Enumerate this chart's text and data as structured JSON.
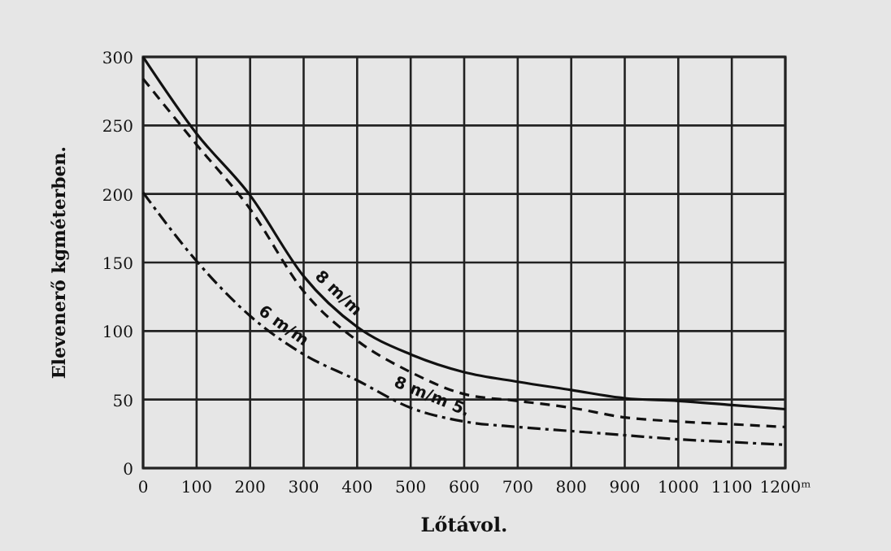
{
  "chart_data": {
    "type": "line",
    "xlabel": "Lőtávol.",
    "ylabel": "Elevenerő kgméterben.",
    "x": [
      0,
      100,
      200,
      300,
      400,
      500,
      600,
      700,
      800,
      900,
      1000,
      1100,
      1200
    ],
    "xlim": [
      0,
      1200
    ],
    "xticks": [
      0,
      100,
      200,
      300,
      400,
      500,
      600,
      700,
      800,
      900,
      1000,
      1100,
      {
        "value": 1200,
        "label": "1200ᵐ"
      }
    ],
    "ylim": [
      0,
      300
    ],
    "yticks": [
      0,
      50,
      100,
      150,
      200,
      250,
      300
    ],
    "grid": true,
    "marker": "none",
    "series": [
      {
        "name": "8 m/m",
        "color": "#111111",
        "line_style": "solid",
        "values": [
          300,
          244,
          199,
          140,
          103,
          83,
          70,
          63,
          57,
          51,
          49,
          46,
          43
        ]
      },
      {
        "name": "8 m/m 5.",
        "color": "#111111",
        "line_style": "dashed",
        "values": [
          284,
          236,
          189,
          129,
          93,
          70,
          54,
          49,
          44,
          37,
          34,
          32,
          30
        ]
      },
      {
        "name": "6 m/m",
        "color": "#111111",
        "line_style": "dashdot",
        "values": [
          201,
          151,
          111,
          83,
          64,
          44,
          34,
          30,
          27,
          24,
          21,
          19,
          17
        ]
      }
    ]
  }
}
